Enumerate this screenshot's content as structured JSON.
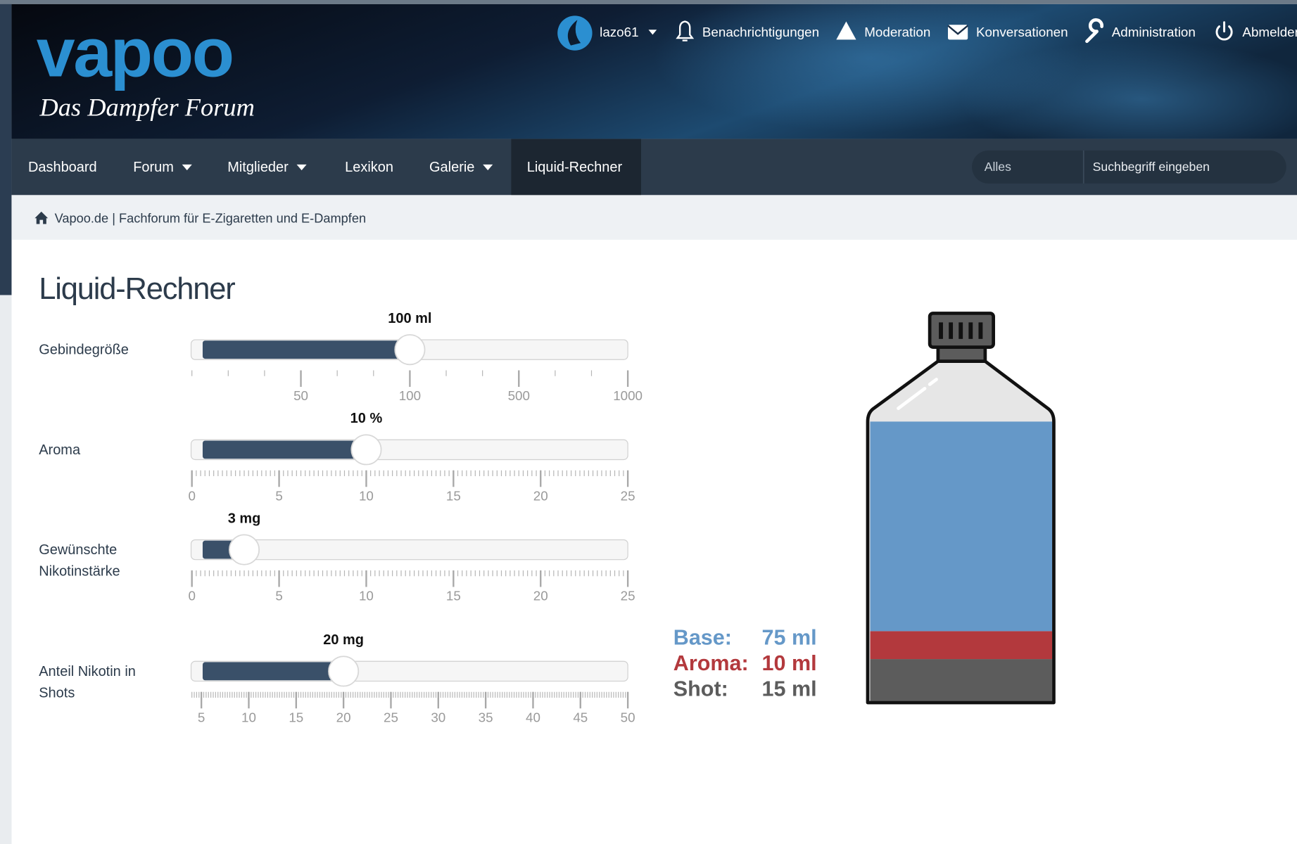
{
  "header": {
    "logo": "vapoo",
    "tagline": "Das Dampfer Forum",
    "user": "lazo61",
    "links": [
      "Benachrichtigungen",
      "Moderation",
      "Konversationen",
      "Administration",
      "Abmelden"
    ]
  },
  "nav": {
    "items": [
      {
        "label": "Dashboard",
        "menu": false,
        "active": false
      },
      {
        "label": "Forum",
        "menu": true,
        "active": false
      },
      {
        "label": "Mitglieder",
        "menu": true,
        "active": false
      },
      {
        "label": "Lexikon",
        "menu": false,
        "active": false
      },
      {
        "label": "Galerie",
        "menu": true,
        "active": false
      },
      {
        "label": "Liquid-Rechner",
        "menu": false,
        "active": true
      }
    ],
    "search_scope": "Alles",
    "search_placeholder": "Suchbegriff eingeben"
  },
  "breadcrumb": "Vapoo.de | Fachforum für E-Zigaretten und E-Dampfen",
  "calculator": {
    "title": "Liquid-Rechner",
    "sliders": [
      {
        "label_lines": [
          "Gebindegröße"
        ],
        "value": 100,
        "value_label": "100 ml",
        "scale": "stepped",
        "ticks": [
          50,
          100,
          500,
          1000
        ]
      },
      {
        "label_lines": [
          "Aroma"
        ],
        "value": 10,
        "value_label": "10 %",
        "scale": "linear",
        "range": [
          0,
          25
        ],
        "ticks": [
          0,
          5,
          10,
          15,
          20,
          25
        ]
      },
      {
        "label_lines": [
          "Gewünschte",
          "Nikotinstärke"
        ],
        "value": 3,
        "value_label": "3 mg",
        "scale": "linear",
        "range": [
          0,
          25
        ],
        "ticks": [
          0,
          5,
          10,
          15,
          20,
          25
        ]
      },
      {
        "label_lines": [
          "Anteil Nikotin in",
          "Shots"
        ],
        "value": 20,
        "value_label": "20 mg",
        "scale": "linear",
        "range": [
          4,
          50
        ],
        "ticks": [
          5,
          10,
          15,
          20,
          25,
          30,
          35,
          40,
          45,
          50
        ]
      }
    ],
    "results": [
      {
        "name": "Base:",
        "value": 75,
        "value_label": "75 ml",
        "color": "#6598c8"
      },
      {
        "name": "Aroma:",
        "value": 10,
        "value_label": "10 ml",
        "color": "#b3393d"
      },
      {
        "name": "Shot:",
        "value": 15,
        "value_label": "15 ml",
        "color": "#5c5c5c"
      }
    ]
  }
}
